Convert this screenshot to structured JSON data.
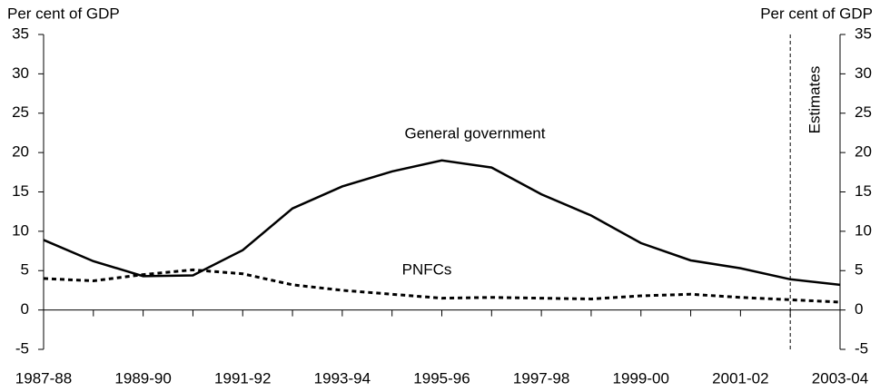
{
  "chart_data": {
    "type": "line",
    "ylabel": "Per cent of GDP",
    "y2label": "Per cent of GDP",
    "categories": [
      "1987-88",
      null,
      "1989-90",
      null,
      "1991-92",
      null,
      "1993-94",
      null,
      "1995-96",
      null,
      "1997-98",
      null,
      "1999-00",
      null,
      "2001-02",
      null,
      "2003-04"
    ],
    "series": [
      {
        "name": "General government",
        "color": "#000000",
        "dash": false,
        "values": [
          8.9,
          6.2,
          4.3,
          4.4,
          7.6,
          12.9,
          15.7,
          17.6,
          19.0,
          18.1,
          14.7,
          12.0,
          8.5,
          6.3,
          5.3,
          3.9,
          3.2
        ]
      },
      {
        "name": "PNFCs",
        "color": "#000000",
        "dash": true,
        "values": [
          4.0,
          3.7,
          4.5,
          5.1,
          4.6,
          3.2,
          2.5,
          2.0,
          1.5,
          1.6,
          1.5,
          1.4,
          1.8,
          2.0,
          1.6,
          1.3,
          1.0
        ]
      }
    ],
    "annotation": "Estimates",
    "ylim": [
      -5,
      35
    ],
    "yticks": [
      -5,
      0,
      5,
      10,
      15,
      20,
      25,
      30,
      35
    ],
    "y2lim": [
      -5,
      35
    ],
    "y2ticks": [
      -5,
      0,
      5,
      10,
      15,
      20,
      25,
      30,
      35
    ]
  }
}
